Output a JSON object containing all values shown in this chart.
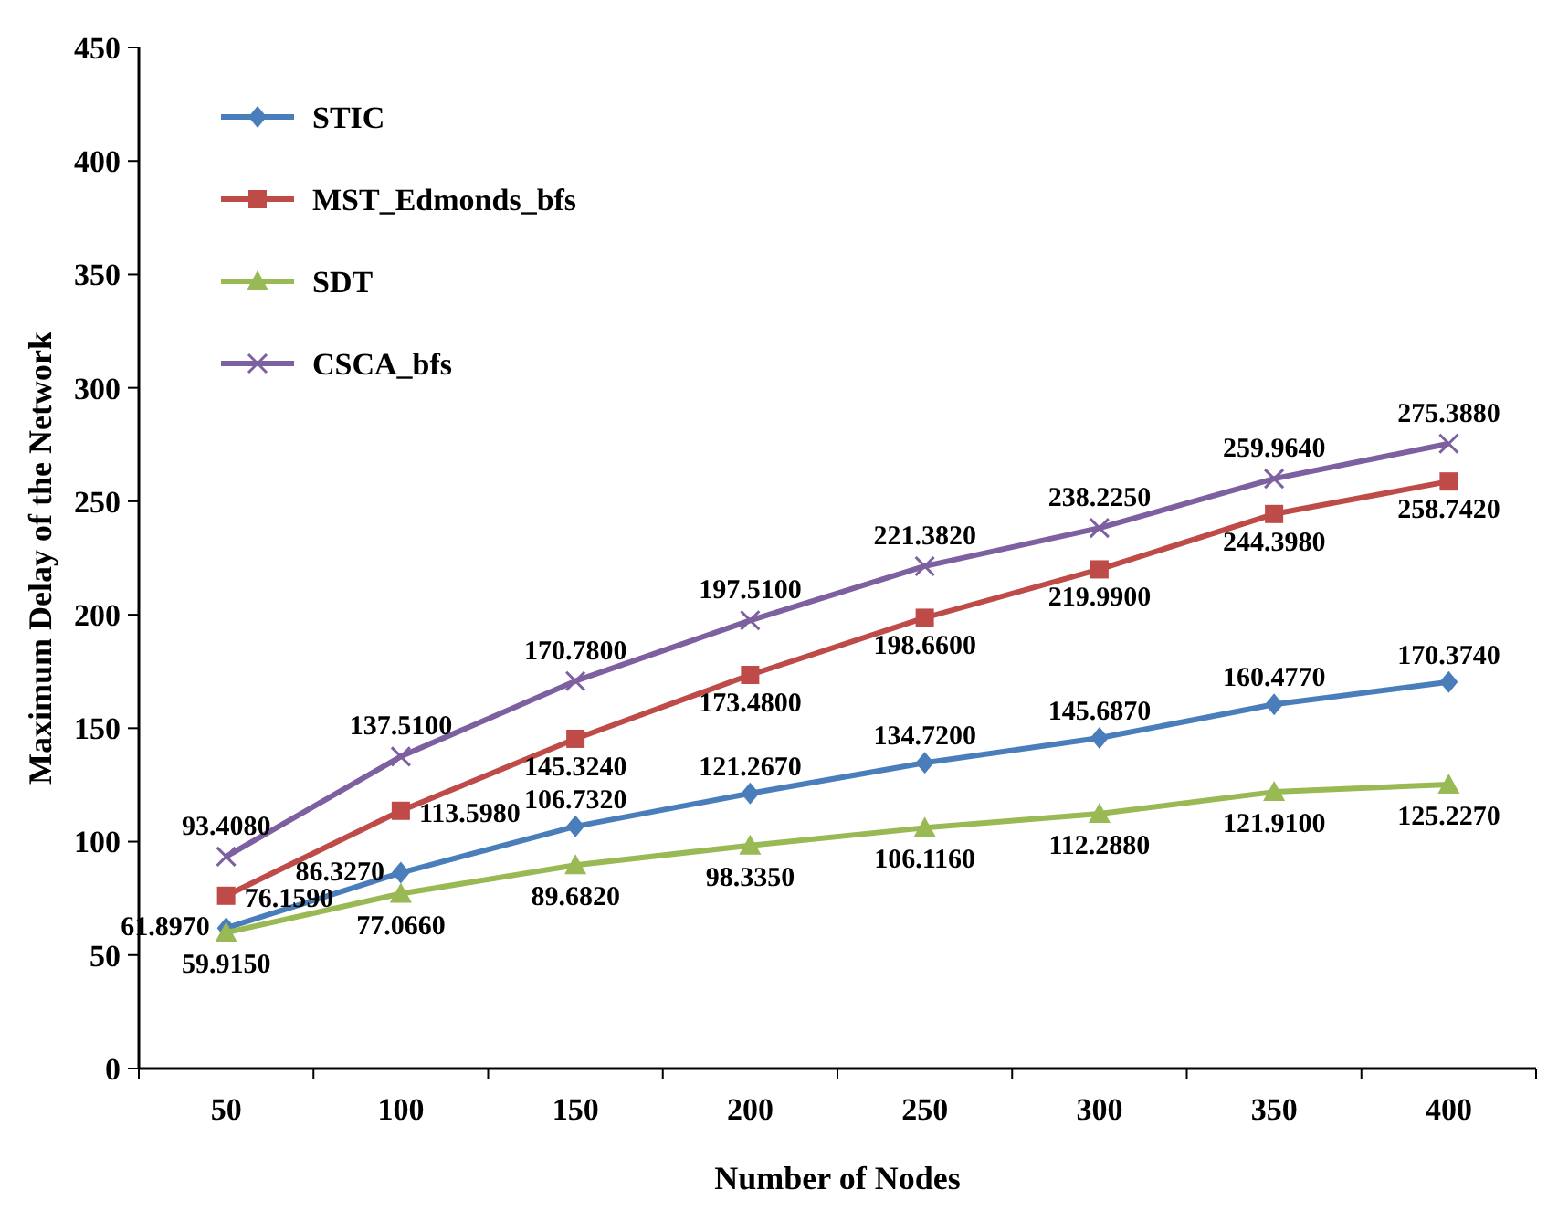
{
  "chart_data": {
    "type": "line",
    "xlabel": "Number of Nodes",
    "ylabel": "Maximum Delay of the Network",
    "categories": [
      "50",
      "100",
      "150",
      "200",
      "250",
      "300",
      "350",
      "400"
    ],
    "ylim": [
      0,
      450
    ],
    "yticks": [
      0,
      50,
      100,
      150,
      200,
      250,
      300,
      350,
      400,
      450
    ],
    "grid": false,
    "legend": "top left",
    "line_style": "solid",
    "series": [
      {
        "name": "STIC",
        "color": "#4a7ebb",
        "marker": "diamond",
        "values": [
          61.897,
          86.327,
          106.732,
          121.267,
          134.72,
          145.687,
          160.477,
          170.374
        ],
        "value_labels": [
          "61.8970",
          "86.3270",
          "106.7320",
          "121.2670",
          "134.7200",
          "145.6870",
          "160.4770",
          "170.3740"
        ]
      },
      {
        "name": "MST_Edmonds_bfs",
        "color": "#be4b48",
        "marker": "square",
        "values": [
          76.159,
          113.598,
          145.324,
          173.48,
          198.66,
          219.99,
          244.398,
          258.742
        ],
        "value_labels": [
          "76.1590",
          "113.5980",
          "145.3240",
          "173.4800",
          "198.6600",
          "219.9900",
          "244.3980",
          "258.7420"
        ]
      },
      {
        "name": "SDT",
        "color": "#98b954",
        "marker": "triangle",
        "values": [
          59.915,
          77.066,
          89.682,
          98.335,
          106.116,
          112.288,
          121.91,
          125.227
        ],
        "value_labels": [
          "59.9150",
          "77.0660",
          "89.6820",
          "98.3350",
          "106.1160",
          "112.2880",
          "121.9100",
          "125.2270"
        ]
      },
      {
        "name": "CSCA_bfs",
        "color": "#7d60a0",
        "marker": "cross",
        "values": [
          93.408,
          137.51,
          170.78,
          197.51,
          221.382,
          238.225,
          259.964,
          275.388
        ],
        "value_labels": [
          "93.4080",
          "137.5100",
          "170.7800",
          "197.5100",
          "221.3820",
          "238.2250",
          "259.9640",
          "275.3880"
        ]
      }
    ]
  }
}
